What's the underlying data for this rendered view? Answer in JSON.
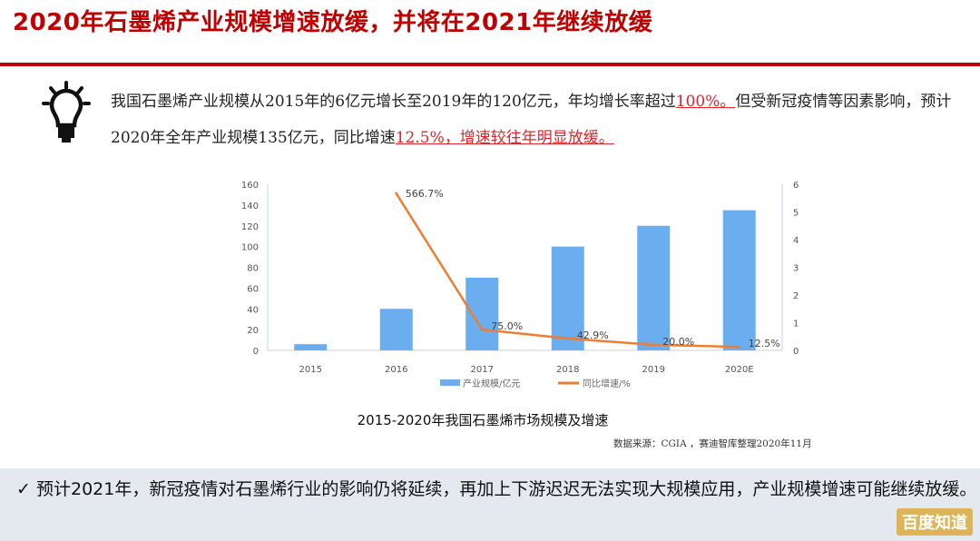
{
  "header": {
    "title": "2020年石墨烯产业规模增速放缓，并将在2021年继续放缓"
  },
  "intro": {
    "part1": "我国石墨烯产业规模从2015年的6亿元增长至2019年的120亿元，年均增长率超过",
    "hl1": "100%。",
    "part2": "但受新冠疫情等因素影响，预计2020年全年产业规模135亿元，同比增速",
    "hl2": "12.5%，增速较往年明显放缓。"
  },
  "chart_data": {
    "type": "bar+line",
    "title": "2015-2020年我国石墨烯市场规模及增速",
    "categories": [
      "2015",
      "2016",
      "2017",
      "2018",
      "2019",
      "2020E"
    ],
    "y_left": {
      "range": [
        0,
        160
      ],
      "ticks": [
        0,
        20,
        40,
        60,
        80,
        100,
        120,
        140,
        160
      ]
    },
    "y_right": {
      "range": [
        0,
        6
      ],
      "ticks": [
        0,
        1,
        2,
        3,
        4,
        5,
        6
      ]
    },
    "series": [
      {
        "name": "产业规模/亿元",
        "type": "bar",
        "axis": "left",
        "color": "#6aaeef",
        "values": [
          6,
          40,
          70,
          100,
          120,
          135
        ]
      },
      {
        "name": "同比增速/%",
        "type": "line",
        "axis": "right",
        "color": "#ef7d31",
        "values": [
          null,
          5.667,
          0.75,
          0.429,
          0.2,
          0.125
        ],
        "labels": [
          null,
          "566.7%",
          "75.0%",
          "42.9%",
          "20.0%",
          "12.5%"
        ]
      }
    ],
    "legend": "bottom",
    "grid": false
  },
  "source": "数据来源：CGIA ，赛迪智库整理2020年11月",
  "bottom": {
    "check": "✓",
    "text": "预计2021年，新冠疫情对石墨烯行业的影响仍将延续，再加上下游迟迟无法实现大规模应用，产业规模增速可能继续放缓。"
  },
  "logo": "百度知道"
}
